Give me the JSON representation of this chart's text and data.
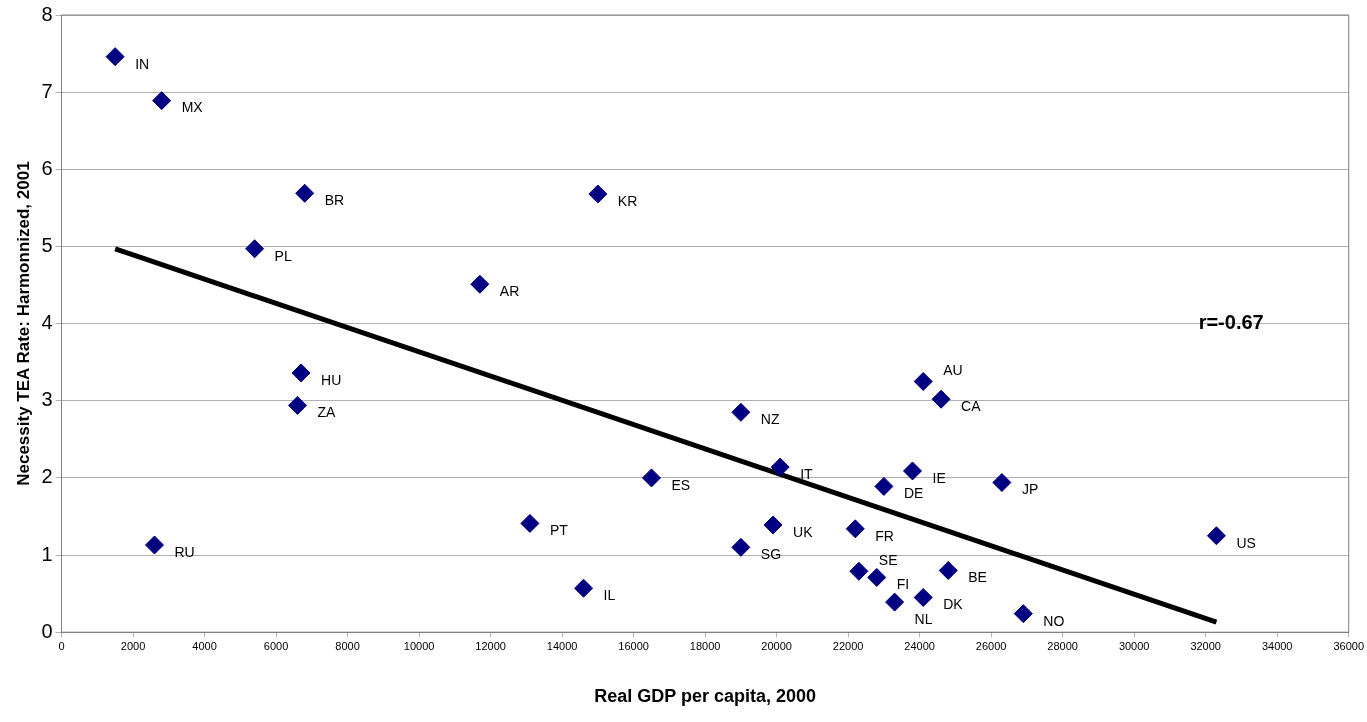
{
  "chart_data": {
    "type": "scatter",
    "xlabel": "Real GDP per capita, 2000",
    "ylabel": "Necessity TEA Rate: Harmonnized, 2001",
    "xlim": [
      0,
      36000
    ],
    "xticks": [
      0,
      2000,
      4000,
      6000,
      8000,
      10000,
      12000,
      14000,
      16000,
      18000,
      20000,
      22000,
      24000,
      26000,
      28000,
      30000,
      32000,
      34000,
      36000
    ],
    "ylim": [
      0,
      8
    ],
    "yticks": [
      0,
      1,
      2,
      3,
      4,
      5,
      6,
      7,
      8
    ],
    "grid": "y",
    "legend": false,
    "marker": "diamond",
    "series": [
      {
        "type": "scatter",
        "color": "#000080",
        "x": [
          1500,
          2800,
          6800,
          15000,
          5400,
          11700,
          6700,
          6600,
          2600,
          13100,
          14600,
          16500,
          19000,
          19000,
          20100,
          19900,
          22200,
          22300,
          22800,
          23300,
          24100,
          23000,
          23800,
          24100,
          24600,
          24800,
          26300,
          26900,
          32300
        ],
        "values": [
          7.46,
          6.89,
          5.69,
          5.68,
          4.97,
          4.51,
          3.36,
          2.94,
          1.13,
          1.41,
          0.57,
          2.0,
          2.85,
          1.1,
          2.14,
          1.39,
          1.34,
          0.79,
          0.71,
          0.39,
          0.45,
          1.89,
          2.09,
          3.25,
          3.02,
          0.8,
          1.94,
          0.24,
          1.25
        ]
      },
      {
        "type": "line",
        "marker": "none",
        "color": "#000000",
        "x": [
          1500,
          32300
        ],
        "values": [
          4.97,
          0.13
        ]
      }
    ],
    "annotations": [
      {
        "text": "IN",
        "x": 1500,
        "y": 7.46
      },
      {
        "text": "MX",
        "x": 2800,
        "y": 6.89
      },
      {
        "text": "BR",
        "x": 6800,
        "y": 5.69
      },
      {
        "text": "KR",
        "x": 15000,
        "y": 5.68
      },
      {
        "text": "PL",
        "x": 5400,
        "y": 4.97
      },
      {
        "text": "AR",
        "x": 11700,
        "y": 4.51
      },
      {
        "text": "HU",
        "x": 6700,
        "y": 3.36
      },
      {
        "text": "ZA",
        "x": 6600,
        "y": 2.94
      },
      {
        "text": "RU",
        "x": 2600,
        "y": 1.13
      },
      {
        "text": "PT",
        "x": 13100,
        "y": 1.41
      },
      {
        "text": "IL",
        "x": 14600,
        "y": 0.57
      },
      {
        "text": "ES",
        "x": 16500,
        "y": 2.0
      },
      {
        "text": "NZ",
        "x": 19000,
        "y": 2.85
      },
      {
        "text": "SG",
        "x": 19000,
        "y": 1.1
      },
      {
        "text": "IT",
        "x": 20100,
        "y": 2.14
      },
      {
        "text": "UK",
        "x": 19900,
        "y": 1.39
      },
      {
        "text": "FR",
        "x": 22200,
        "y": 1.34
      },
      {
        "text": "SE",
        "x": 22300,
        "y": 0.79
      },
      {
        "text": "FI",
        "x": 22800,
        "y": 0.71
      },
      {
        "text": "NL",
        "x": 23300,
        "y": 0.39
      },
      {
        "text": "DK",
        "x": 24100,
        "y": 0.45
      },
      {
        "text": "DE",
        "x": 23000,
        "y": 1.89
      },
      {
        "text": "IE",
        "x": 23800,
        "y": 2.09
      },
      {
        "text": "AU",
        "x": 24100,
        "y": 3.25
      },
      {
        "text": "CA",
        "x": 24600,
        "y": 3.02
      },
      {
        "text": "BE",
        "x": 24800,
        "y": 0.8
      },
      {
        "text": "JP",
        "x": 26300,
        "y": 1.94
      },
      {
        "text": "NO",
        "x": 26900,
        "y": 0.24
      },
      {
        "text": "US",
        "x": 32300,
        "y": 1.25
      },
      "r=-0.67"
    ]
  }
}
